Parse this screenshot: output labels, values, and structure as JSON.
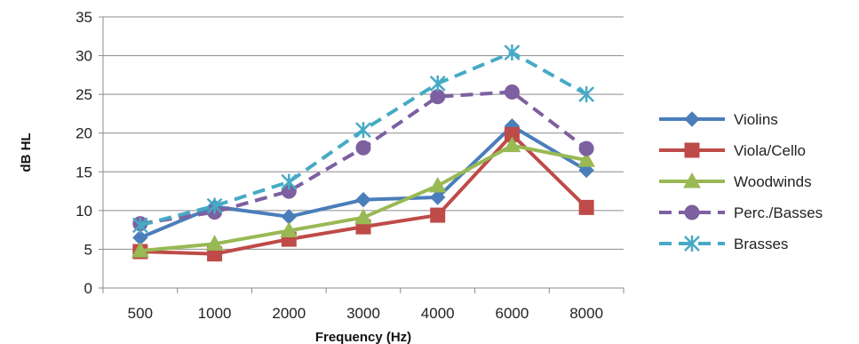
{
  "chart_data": {
    "type": "line",
    "title": "",
    "xlabel": "Frequency (Hz)",
    "ylabel": "dB HL",
    "categories": [
      "500",
      "1000",
      "2000",
      "3000",
      "4000",
      "6000",
      "8000"
    ],
    "ylim": [
      0,
      35
    ],
    "yticks": [
      0,
      5,
      10,
      15,
      20,
      25,
      30,
      35
    ],
    "grid": "horizontal",
    "legend_position": "right",
    "series": [
      {
        "name": "Violins",
        "color": "#4a7ebb",
        "dash": "solid",
        "marker": "diamond",
        "values": [
          6.5,
          10.5,
          9.2,
          11.4,
          11.7,
          20.9,
          15.2
        ]
      },
      {
        "name": "Viola/Cello",
        "color": "#be4b48",
        "dash": "solid",
        "marker": "square",
        "values": [
          4.7,
          4.4,
          6.3,
          7.9,
          9.4,
          19.8,
          10.4
        ]
      },
      {
        "name": "Woodwinds",
        "color": "#98b954",
        "dash": "solid",
        "marker": "triangle",
        "values": [
          4.8,
          5.7,
          7.4,
          9.1,
          13.2,
          18.4,
          16.5
        ]
      },
      {
        "name": "Perc./Basses",
        "color": "#7d60a0",
        "dash": "dashed",
        "marker": "circle",
        "values": [
          8.3,
          9.8,
          12.5,
          18.1,
          24.7,
          25.3,
          18.0
        ]
      },
      {
        "name": "Brasses",
        "color": "#46aac5",
        "dash": "dashed",
        "marker": "star",
        "values": [
          8.1,
          10.6,
          13.7,
          20.4,
          26.4,
          30.4,
          25.0
        ]
      }
    ]
  }
}
